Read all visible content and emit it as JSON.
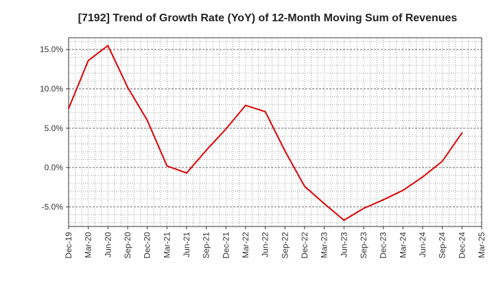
{
  "chart_data": {
    "type": "line",
    "title": "[7192]  Trend of Growth Rate (YoY) of 12-Month Moving Sum of Revenues",
    "xlabel": "",
    "ylabel": "",
    "x_tick_labels": [
      "Dec-19",
      "Mar-20",
      "Jun-20",
      "Sep-20",
      "Dec-20",
      "Mar-21",
      "Jun-21",
      "Sep-21",
      "Dec-21",
      "Mar-22",
      "Jun-22",
      "Sep-22",
      "Dec-22",
      "Mar-23",
      "Jun-23",
      "Sep-23",
      "Dec-23",
      "Mar-24",
      "Jun-24",
      "Sep-24",
      "Dec-24",
      "Mar-25"
    ],
    "y_tick_labels": [
      "15.0%",
      "10.0%",
      "5.0%",
      "0.0%",
      "-5.0%"
    ],
    "y_ticks": [
      15,
      10,
      5,
      0,
      -5
    ],
    "ylim": [
      -7.5,
      16.5
    ],
    "grid": true,
    "line_color": "#e00000",
    "series": [
      {
        "name": "",
        "x": [
          "Dec-19",
          "Mar-20",
          "Jun-20",
          "Sep-20",
          "Dec-20",
          "Mar-21",
          "Jun-21",
          "Sep-21",
          "Dec-21",
          "Mar-22",
          "Jun-22",
          "Sep-22",
          "Dec-22",
          "Mar-23",
          "Jun-23",
          "Sep-23",
          "Dec-23",
          "Mar-24",
          "Jun-24",
          "Sep-24",
          "Dec-24"
        ],
        "values": [
          7.5,
          13.6,
          15.5,
          10.2,
          6.0,
          0.2,
          -0.7,
          2.2,
          4.9,
          7.9,
          7.1,
          2.1,
          -2.4,
          -4.6,
          -6.7,
          -5.2,
          -4.1,
          -2.9,
          -1.2,
          0.8,
          4.4
        ]
      }
    ]
  }
}
